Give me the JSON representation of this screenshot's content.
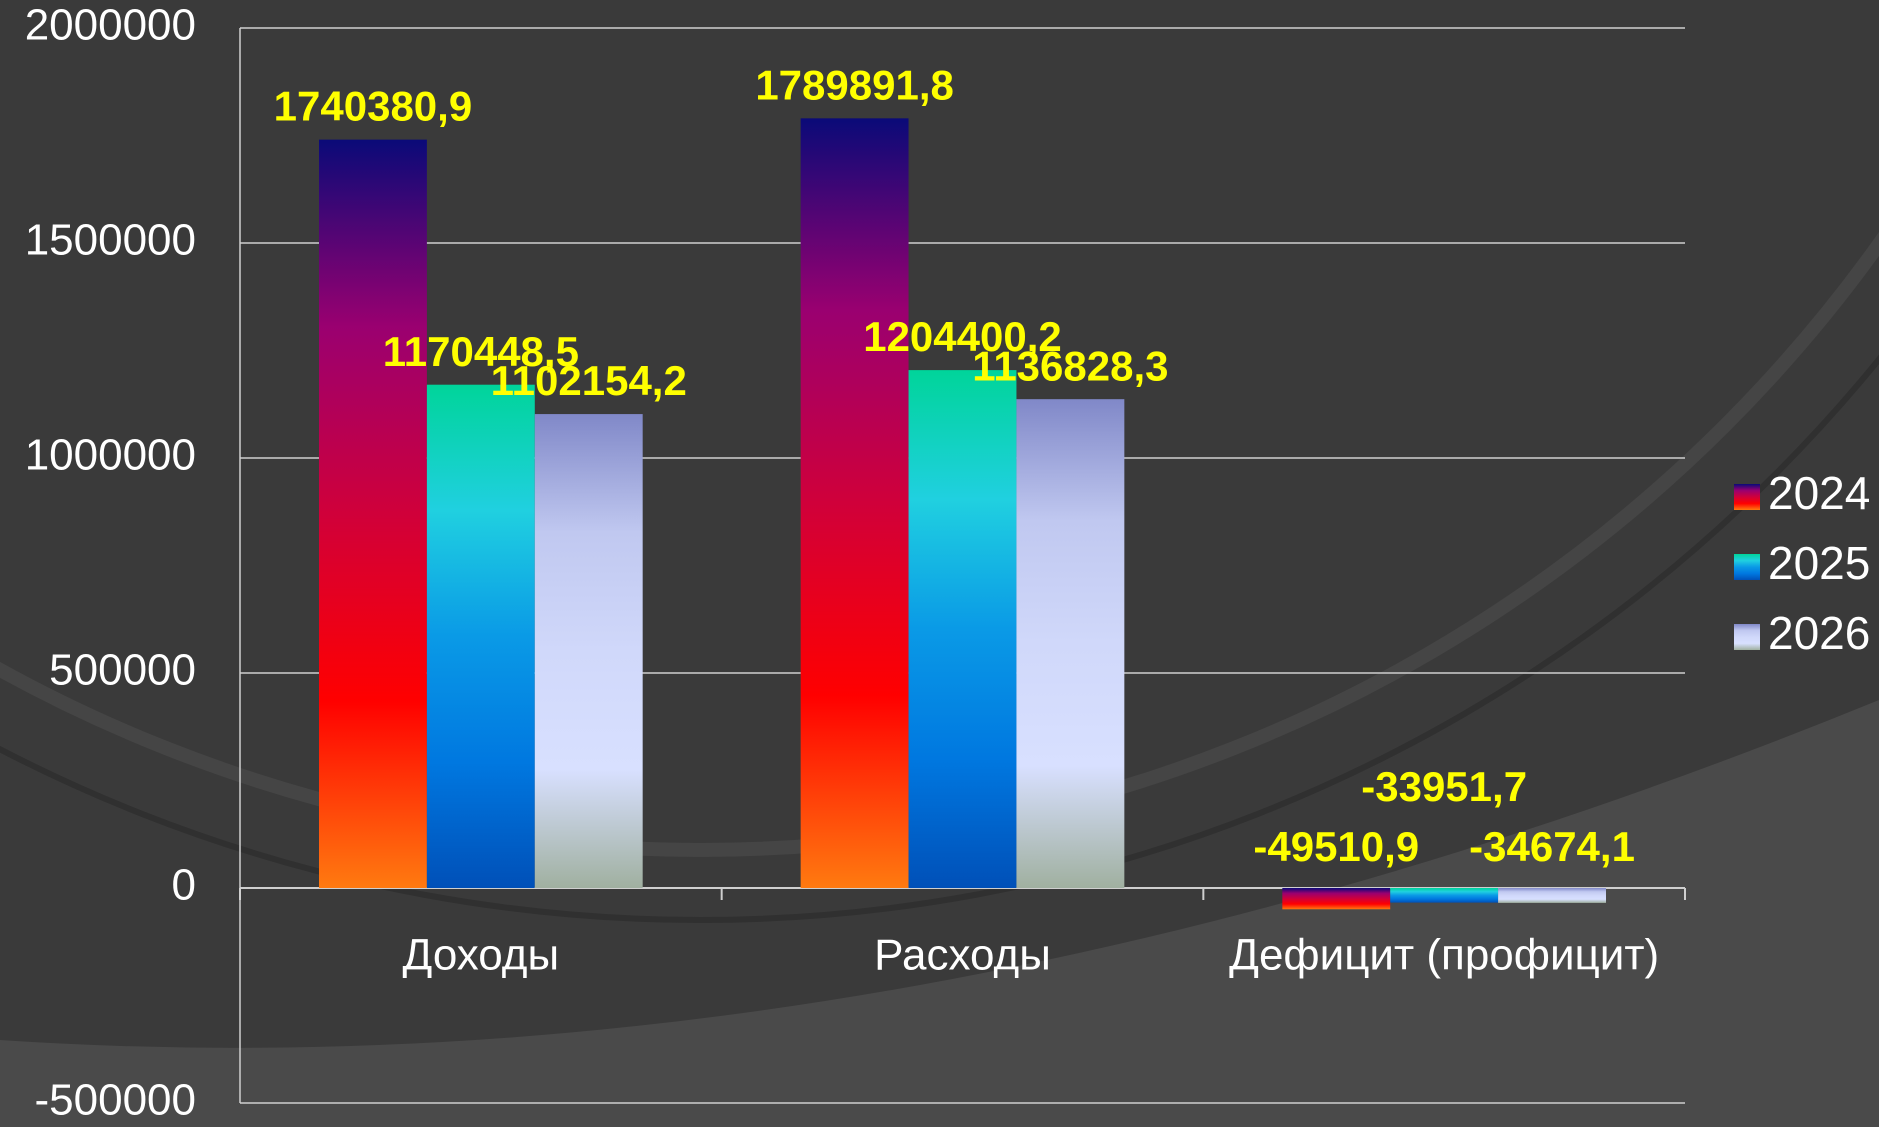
{
  "chart_data": {
    "type": "bar",
    "categories": [
      "Доходы",
      "Расходы",
      "Дефицит (профицит)"
    ],
    "series": [
      {
        "name": "2024",
        "color": "#9a0070",
        "values": [
          1740380.9,
          1789891.8,
          -49510.9
        ],
        "value_labels": [
          "1740380,9",
          "1789891,8",
          "-49510,9"
        ]
      },
      {
        "name": "2025",
        "color": "#20d0e0",
        "values": [
          1170448.5,
          1204400.2,
          -33951.7
        ],
        "value_labels": [
          "1170448,5",
          "1204400,2",
          "-33951,7"
        ]
      },
      {
        "name": "2026",
        "color": "#c0c8f0",
        "values": [
          1102154.2,
          1136828.3,
          -34674.1
        ],
        "value_labels": [
          "1102154,2",
          "1136828,3",
          "-34674,1"
        ]
      }
    ],
    "ylim": [
      -500000,
      2000000
    ],
    "yticks": [
      -500000,
      0,
      500000,
      1000000,
      1500000,
      2000000
    ],
    "grid": true,
    "legend": "right"
  }
}
